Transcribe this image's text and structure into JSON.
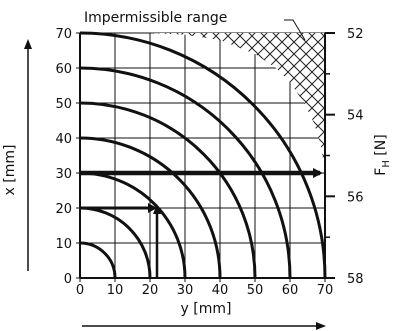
{
  "chart_data": {
    "type": "line",
    "title": "",
    "xlabel": "y [mm]",
    "ylabel": "x [mm]",
    "y2label_main": "F",
    "y2label_sub": "H",
    "y2label_unit": "[N]",
    "x_ticks": [
      "0",
      "10",
      "20",
      "30",
      "40",
      "50",
      "60",
      "70"
    ],
    "y_ticks": [
      "0",
      "10",
      "20",
      "30",
      "40",
      "50",
      "60",
      "70"
    ],
    "y2_ticks": [
      "52",
      "54",
      "56",
      "58"
    ],
    "xlim": [
      0,
      70
    ],
    "ylim": [
      0,
      70
    ],
    "y2lim": [
      58,
      52
    ],
    "grid": true,
    "curves": [
      {
        "radius": 10
      },
      {
        "radius": 20
      },
      {
        "radius": 30
      },
      {
        "radius": 40
      },
      {
        "radius": 50
      },
      {
        "radius": 60
      },
      {
        "radius": 70
      }
    ],
    "impermissible_boundary": [
      [
        0,
        70
      ],
      [
        10,
        70
      ],
      [
        20,
        70
      ],
      [
        30,
        69.5
      ],
      [
        40,
        68
      ],
      [
        50,
        64
      ],
      [
        56,
        60
      ],
      [
        60,
        56
      ],
      [
        64,
        50
      ],
      [
        67,
        44
      ],
      [
        69,
        37
      ],
      [
        70,
        30
      ],
      [
        70,
        70
      ]
    ],
    "annotation": {
      "text": "Impermissible range"
    },
    "examples": [
      {
        "x": 30,
        "path": "horizontal-to-FH"
      },
      {
        "x": 20,
        "y": 22,
        "path": "vertical-to-y"
      }
    ]
  }
}
